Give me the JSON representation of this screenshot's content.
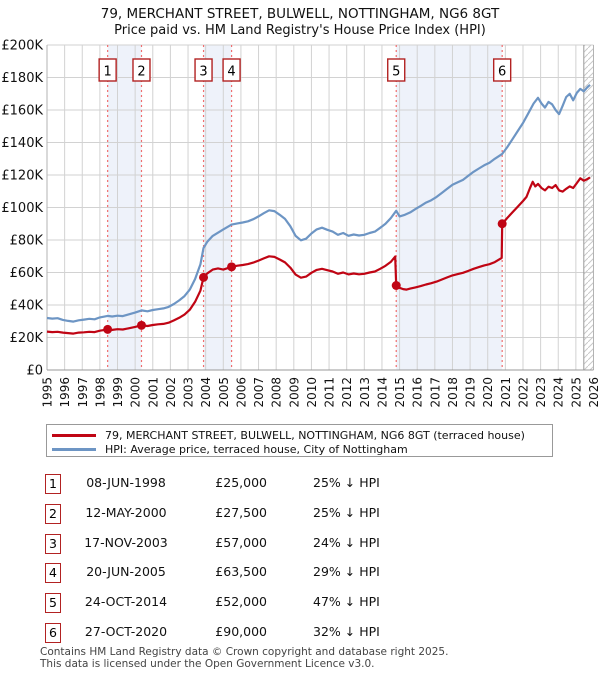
{
  "title": "79, MERCHANT STREET, BULWELL, NOTTINGHAM, NG6 8GT",
  "subtitle": "Price paid vs. HM Land Registry's House Price Index (HPI)",
  "legend": [
    {
      "label": "79, MERCHANT STREET, BULWELL, NOTTINGHAM, NG6 8GT (terraced house)",
      "color": "#c00514"
    },
    {
      "label": "HPI: Average price, terraced house, City of Nottingham",
      "color": "#6d95c4"
    }
  ],
  "footer": {
    "line1": "Contains HM Land Registry data © Crown copyright and database right 2025.",
    "line2": "This data is licensed under the Open Government Licence v3.0."
  },
  "chart_data": {
    "type": "line",
    "title": "Price paid vs. HM Land Registry's House Price Index (HPI)",
    "x_range": [
      1995,
      2026
    ],
    "ylim_k": [
      0,
      200
    ],
    "y_tick_labels": [
      "£0",
      "£20K",
      "£40K",
      "£60K",
      "£80K",
      "£100K",
      "£120K",
      "£140K",
      "£160K",
      "£180K",
      "£200K"
    ],
    "x_tick_labels": [
      "1995",
      "1996",
      "1997",
      "1998",
      "1999",
      "2000",
      "2001",
      "2002",
      "2003",
      "2004",
      "2005",
      "2006",
      "2007",
      "2008",
      "2009",
      "2010",
      "2011",
      "2012",
      "2013",
      "2014",
      "2015",
      "2016",
      "2017",
      "2018",
      "2019",
      "2020",
      "2021",
      "2022",
      "2023",
      "2024",
      "2025",
      "2026"
    ],
    "grid": true,
    "legend_position": "below",
    "future_start": 2025.45,
    "bands": [
      [
        1998.44,
        2000.36
      ],
      [
        2003.88,
        2005.47
      ],
      [
        2014.81,
        2020.82
      ]
    ],
    "colors": {
      "price_line": "#c00514",
      "hpi_line": "#6d95c4",
      "sale_marker_line": "#f06e6e",
      "band": "#eef2fa",
      "badge_border": "#b22222",
      "grid": "#d2d2d2",
      "frame": "#b3b3b3",
      "axis_bottom": "#999999",
      "hatch": "#c9c9c9"
    },
    "sales": [
      {
        "n": 1,
        "date": "08-JUN-1998",
        "year": 1998.44,
        "price_k": 25,
        "price": "£25,000",
        "pct": "25% ↓ HPI"
      },
      {
        "n": 2,
        "date": "12-MAY-2000",
        "year": 2000.36,
        "price_k": 27.5,
        "price": "£27,500",
        "pct": "25% ↓ HPI"
      },
      {
        "n": 3,
        "date": "17-NOV-2003",
        "year": 2003.88,
        "price_k": 57,
        "price": "£57,000",
        "pct": "24% ↓ HPI"
      },
      {
        "n": 4,
        "date": "20-JUN-2005",
        "year": 2005.47,
        "price_k": 63.5,
        "price": "£63,500",
        "pct": "29% ↓ HPI"
      },
      {
        "n": 5,
        "date": "24-OCT-2014",
        "year": 2014.81,
        "price_k": 52,
        "price": "£52,000",
        "pct": "47% ↓ HPI"
      },
      {
        "n": 6,
        "date": "27-OCT-2020",
        "year": 2020.82,
        "price_k": 90,
        "price": "£90,000",
        "pct": "32% ↓ HPI"
      }
    ],
    "series": [
      {
        "name": "79, MERCHANT STREET, BULWELL, NOTTINGHAM, NG6 8GT (terraced house)",
        "points": [
          [
            1995.0,
            23.6
          ],
          [
            1995.3,
            23.3
          ],
          [
            1995.6,
            23.5
          ],
          [
            1995.9,
            23.0
          ],
          [
            1996.2,
            22.7
          ],
          [
            1996.5,
            22.4
          ],
          [
            1996.8,
            23.0
          ],
          [
            1997.1,
            23.2
          ],
          [
            1997.4,
            23.5
          ],
          [
            1997.7,
            23.3
          ],
          [
            1998.0,
            24.2
          ],
          [
            1998.44,
            25.0
          ],
          [
            1998.7,
            24.7
          ],
          [
            1999.0,
            25.1
          ],
          [
            1999.3,
            24.9
          ],
          [
            1999.6,
            25.6
          ],
          [
            2000.0,
            26.5
          ],
          [
            2000.36,
            27.5
          ],
          [
            2000.7,
            27.1
          ],
          [
            2001.0,
            27.7
          ],
          [
            2001.3,
            28.1
          ],
          [
            2001.6,
            28.4
          ],
          [
            2001.9,
            29.1
          ],
          [
            2002.2,
            30.5
          ],
          [
            2002.5,
            32.1
          ],
          [
            2002.8,
            34.1
          ],
          [
            2003.1,
            37.1
          ],
          [
            2003.4,
            42.0
          ],
          [
            2003.7,
            48.8
          ],
          [
            2003.88,
            57.0
          ],
          [
            2004.1,
            59.5
          ],
          [
            2004.4,
            61.8
          ],
          [
            2004.7,
            62.5
          ],
          [
            2005.0,
            61.8
          ],
          [
            2005.2,
            62.5
          ],
          [
            2005.47,
            63.5
          ],
          [
            2005.8,
            64.2
          ],
          [
            2006.1,
            64.6
          ],
          [
            2006.4,
            65.2
          ],
          [
            2006.7,
            66.1
          ],
          [
            2007.0,
            67.3
          ],
          [
            2007.3,
            68.7
          ],
          [
            2007.6,
            70.0
          ],
          [
            2007.9,
            69.6
          ],
          [
            2008.2,
            68.0
          ],
          [
            2008.5,
            66.2
          ],
          [
            2008.8,
            63.0
          ],
          [
            2009.1,
            58.7
          ],
          [
            2009.4,
            56.8
          ],
          [
            2009.7,
            57.5
          ],
          [
            2010.0,
            59.8
          ],
          [
            2010.3,
            61.6
          ],
          [
            2010.6,
            62.3
          ],
          [
            2010.9,
            61.4
          ],
          [
            2011.2,
            60.6
          ],
          [
            2011.5,
            59.2
          ],
          [
            2011.8,
            60.0
          ],
          [
            2012.1,
            58.8
          ],
          [
            2012.4,
            59.4
          ],
          [
            2012.7,
            58.9
          ],
          [
            2013.0,
            59.2
          ],
          [
            2013.3,
            60.0
          ],
          [
            2013.6,
            60.6
          ],
          [
            2013.9,
            62.3
          ],
          [
            2014.2,
            64.1
          ],
          [
            2014.5,
            66.5
          ],
          [
            2014.75,
            69.8
          ],
          [
            2014.81,
            52.0
          ],
          [
            2015.0,
            50.6
          ],
          [
            2015.2,
            49.8
          ],
          [
            2015.4,
            49.5
          ],
          [
            2015.6,
            50.1
          ],
          [
            2015.9,
            50.8
          ],
          [
            2016.2,
            51.6
          ],
          [
            2016.5,
            52.6
          ],
          [
            2016.8,
            53.4
          ],
          [
            2017.1,
            54.4
          ],
          [
            2017.4,
            55.7
          ],
          [
            2017.7,
            57.0
          ],
          [
            2018.0,
            58.2
          ],
          [
            2018.3,
            59.0
          ],
          [
            2018.6,
            59.8
          ],
          [
            2018.9,
            61.0
          ],
          [
            2019.2,
            62.3
          ],
          [
            2019.5,
            63.3
          ],
          [
            2019.8,
            64.4
          ],
          [
            2020.1,
            65.1
          ],
          [
            2020.4,
            66.4
          ],
          [
            2020.79,
            69.0
          ],
          [
            2020.82,
            90.0
          ],
          [
            2021.1,
            93.5
          ],
          [
            2021.4,
            97.0
          ],
          [
            2021.7,
            100.5
          ],
          [
            2022.0,
            104.0
          ],
          [
            2022.2,
            106.5
          ],
          [
            2022.4,
            112.0
          ],
          [
            2022.55,
            115.8
          ],
          [
            2022.7,
            113.0
          ],
          [
            2022.85,
            114.5
          ],
          [
            2023.05,
            112.0
          ],
          [
            2023.25,
            110.5
          ],
          [
            2023.45,
            112.8
          ],
          [
            2023.65,
            112.0
          ],
          [
            2023.85,
            113.8
          ],
          [
            2024.05,
            110.5
          ],
          [
            2024.25,
            109.8
          ],
          [
            2024.45,
            111.5
          ],
          [
            2024.65,
            113.0
          ],
          [
            2024.85,
            112.0
          ],
          [
            2025.05,
            115.0
          ],
          [
            2025.25,
            118.0
          ],
          [
            2025.45,
            116.5
          ],
          [
            2025.65,
            117.5
          ],
          [
            2025.8,
            118.5
          ]
        ]
      },
      {
        "name": "HPI: Average price, terraced house, City of Nottingham",
        "points": [
          [
            1995.0,
            32.0
          ],
          [
            1995.3,
            31.6
          ],
          [
            1995.6,
            31.9
          ],
          [
            1995.9,
            30.8
          ],
          [
            1996.2,
            30.2
          ],
          [
            1996.5,
            29.8
          ],
          [
            1996.8,
            30.6
          ],
          [
            1997.1,
            31.0
          ],
          [
            1997.4,
            31.5
          ],
          [
            1997.7,
            31.2
          ],
          [
            1998.0,
            32.4
          ],
          [
            1998.44,
            33.3
          ],
          [
            1998.7,
            32.9
          ],
          [
            1999.0,
            33.4
          ],
          [
            1999.3,
            33.2
          ],
          [
            1999.6,
            34.1
          ],
          [
            2000.0,
            35.3
          ],
          [
            2000.36,
            36.7
          ],
          [
            2000.7,
            36.1
          ],
          [
            2001.0,
            36.9
          ],
          [
            2001.3,
            37.4
          ],
          [
            2001.6,
            37.9
          ],
          [
            2001.9,
            38.8
          ],
          [
            2002.2,
            40.6
          ],
          [
            2002.5,
            42.8
          ],
          [
            2002.8,
            45.5
          ],
          [
            2003.1,
            49.5
          ],
          [
            2003.4,
            56.0
          ],
          [
            2003.7,
            65.0
          ],
          [
            2003.88,
            75.0
          ],
          [
            2004.1,
            79.0
          ],
          [
            2004.4,
            82.5
          ],
          [
            2004.7,
            84.5
          ],
          [
            2005.0,
            86.5
          ],
          [
            2005.47,
            89.5
          ],
          [
            2005.8,
            90.2
          ],
          [
            2006.1,
            90.8
          ],
          [
            2006.4,
            91.5
          ],
          [
            2006.7,
            92.8
          ],
          [
            2007.0,
            94.5
          ],
          [
            2007.3,
            96.5
          ],
          [
            2007.6,
            98.3
          ],
          [
            2007.9,
            97.8
          ],
          [
            2008.2,
            95.5
          ],
          [
            2008.5,
            93.0
          ],
          [
            2008.8,
            88.5
          ],
          [
            2009.1,
            82.5
          ],
          [
            2009.4,
            79.8
          ],
          [
            2009.7,
            80.8
          ],
          [
            2010.0,
            84.0
          ],
          [
            2010.3,
            86.5
          ],
          [
            2010.6,
            87.6
          ],
          [
            2010.9,
            86.3
          ],
          [
            2011.2,
            85.2
          ],
          [
            2011.5,
            83.2
          ],
          [
            2011.8,
            84.3
          ],
          [
            2012.1,
            82.6
          ],
          [
            2012.4,
            83.4
          ],
          [
            2012.7,
            82.8
          ],
          [
            2013.0,
            83.2
          ],
          [
            2013.3,
            84.3
          ],
          [
            2013.6,
            85.2
          ],
          [
            2013.9,
            87.5
          ],
          [
            2014.2,
            90.0
          ],
          [
            2014.5,
            93.5
          ],
          [
            2014.81,
            98.0
          ],
          [
            2015.0,
            94.5
          ],
          [
            2015.3,
            95.5
          ],
          [
            2015.6,
            97.0
          ],
          [
            2015.9,
            99.0
          ],
          [
            2016.2,
            101.0
          ],
          [
            2016.5,
            103.0
          ],
          [
            2016.8,
            104.5
          ],
          [
            2017.1,
            106.5
          ],
          [
            2017.4,
            109.0
          ],
          [
            2017.7,
            111.5
          ],
          [
            2018.0,
            114.0
          ],
          [
            2018.3,
            115.5
          ],
          [
            2018.6,
            117.0
          ],
          [
            2018.9,
            119.5
          ],
          [
            2019.2,
            122.0
          ],
          [
            2019.5,
            124.0
          ],
          [
            2019.8,
            126.0
          ],
          [
            2020.1,
            127.5
          ],
          [
            2020.4,
            130.0
          ],
          [
            2020.82,
            133.0
          ],
          [
            2021.1,
            137.0
          ],
          [
            2021.4,
            142.0
          ],
          [
            2021.7,
            147.0
          ],
          [
            2022.0,
            152.0
          ],
          [
            2022.3,
            158.0
          ],
          [
            2022.6,
            164.0
          ],
          [
            2022.85,
            167.5
          ],
          [
            2023.05,
            164.0
          ],
          [
            2023.25,
            161.5
          ],
          [
            2023.45,
            165.0
          ],
          [
            2023.65,
            163.5
          ],
          [
            2023.85,
            160.0
          ],
          [
            2024.05,
            157.5
          ],
          [
            2024.25,
            162.5
          ],
          [
            2024.45,
            168.0
          ],
          [
            2024.65,
            170.0
          ],
          [
            2024.85,
            166.0
          ],
          [
            2025.05,
            170.5
          ],
          [
            2025.25,
            173.0
          ],
          [
            2025.45,
            171.5
          ],
          [
            2025.65,
            174.0
          ],
          [
            2025.8,
            175.5
          ]
        ]
      }
    ]
  }
}
